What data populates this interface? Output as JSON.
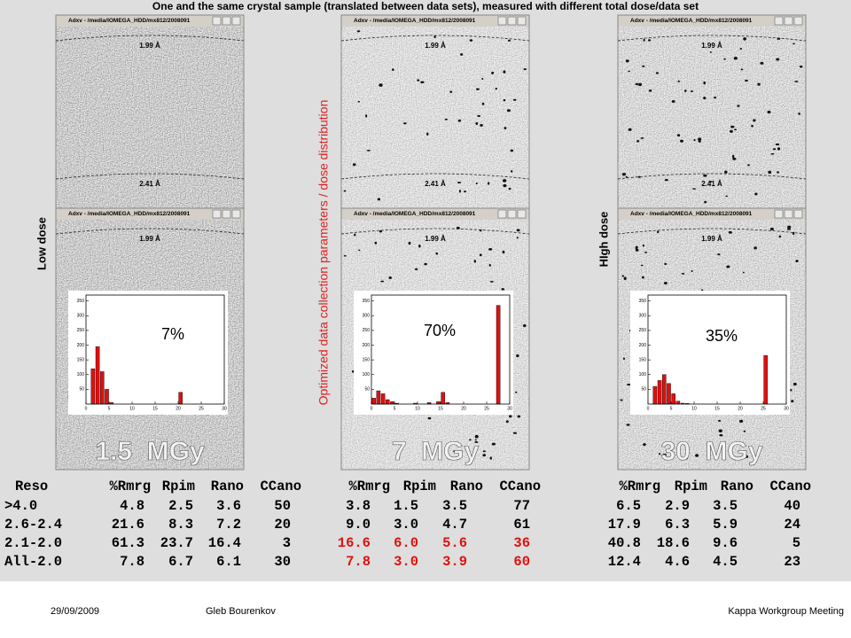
{
  "title": "One and the same crystal sample (translated between data sets), measured with different total dose/data set",
  "side_labels": {
    "low": "Low dose",
    "middle": "Optimized data collection parameters / dose distribution",
    "high": "HIgh dose"
  },
  "panels": [
    {
      "window_title": "Adxv - /media/IOMEGA_HDD/mx812/2008091",
      "top_labels": [
        "1.99 Å",
        "2.41 Å"
      ],
      "bottom_labels": [
        "1.99 Å"
      ],
      "dose": "1.5  MGy",
      "histogram": {
        "type": "histogram",
        "label": "7%",
        "bins": [
          0,
          1,
          2,
          3,
          4,
          5,
          6,
          7,
          8,
          9,
          10,
          11,
          12,
          13,
          14,
          15,
          16,
          17,
          18,
          19,
          20,
          21,
          22,
          23,
          24,
          25,
          26,
          27,
          28,
          29,
          30
        ],
        "counts": [
          0,
          120,
          195,
          110,
          50,
          5,
          0,
          0,
          0,
          0,
          0,
          0,
          0,
          0,
          0,
          0,
          0,
          0,
          0,
          0,
          40,
          0,
          0,
          0,
          0,
          0,
          0,
          0,
          0,
          0
        ],
        "xlim": [
          0,
          30
        ],
        "xticks": [
          0,
          5,
          10,
          15,
          20,
          25,
          30
        ],
        "ylim": [
          0,
          370
        ],
        "yticks": [
          50,
          100,
          150,
          200,
          250,
          300,
          350
        ]
      }
    },
    {
      "window_title": "Adxv - /media/IOMEGA_HDD/mx812/2008091",
      "top_labels": [
        "1.99 Å",
        "2.41 Å"
      ],
      "bottom_labels": [
        "1.99 Å"
      ],
      "dose": "7  MGy",
      "histogram": {
        "type": "histogram",
        "label": "70%",
        "bins": [
          0,
          1,
          2,
          3,
          4,
          5,
          6,
          7,
          8,
          9,
          10,
          11,
          12,
          13,
          14,
          15,
          16,
          17,
          18,
          19,
          20,
          21,
          22,
          23,
          24,
          25,
          26,
          27,
          28,
          29,
          30
        ],
        "counts": [
          20,
          45,
          35,
          15,
          8,
          3,
          0,
          0,
          0,
          3,
          0,
          0,
          5,
          0,
          8,
          40,
          5,
          0,
          0,
          0,
          0,
          0,
          0,
          0,
          0,
          0,
          0,
          335,
          0,
          0
        ],
        "xlim": [
          0,
          30
        ],
        "xticks": [
          0,
          5,
          10,
          15,
          20,
          25,
          30
        ],
        "ylim": [
          0,
          370
        ],
        "yticks": [
          50,
          100,
          150,
          200,
          250,
          300,
          350
        ]
      }
    },
    {
      "window_title": "Adxv - /media/IOMEGA_HDD/mx812/2008091",
      "top_labels": [
        "1.99 Å",
        "2.41 Å"
      ],
      "bottom_labels": [
        "1.99 Å"
      ],
      "dose": "30  MGy",
      "histogram": {
        "type": "histogram",
        "label": "35%",
        "bins": [
          0,
          1,
          2,
          3,
          4,
          5,
          6,
          7,
          8,
          9,
          10,
          11,
          12,
          13,
          14,
          15,
          16,
          17,
          18,
          19,
          20,
          21,
          22,
          23,
          24,
          25,
          26,
          27,
          28,
          29,
          30
        ],
        "counts": [
          0,
          60,
          80,
          100,
          70,
          35,
          10,
          3,
          2,
          0,
          0,
          0,
          0,
          0,
          0,
          0,
          0,
          0,
          0,
          0,
          0,
          0,
          0,
          0,
          0,
          165,
          0,
          0,
          0,
          0
        ],
        "xlim": [
          0,
          30
        ],
        "xticks": [
          0,
          5,
          10,
          15,
          20,
          25,
          30
        ],
        "ylim": [
          0,
          370
        ],
        "yticks": [
          50,
          100,
          150,
          200,
          250,
          300,
          350
        ]
      }
    }
  ],
  "table": {
    "header": [
      "Reso",
      "%Rmrg",
      "Rpim",
      "Rano",
      "CCano",
      "%Rmrg",
      "Rpim",
      "Rano",
      "CCano",
      "%Rmrg",
      "Rpim",
      "Rano",
      "CCano"
    ],
    "rows": [
      [
        ">4.0",
        "4.8",
        "2.5",
        "3.6",
        "50",
        "3.8",
        "1.5",
        "3.5",
        "77",
        "6.5",
        "2.9",
        "3.5",
        "40"
      ],
      [
        "2.6-2.4",
        "21.6",
        "8.3",
        "7.2",
        "20",
        "9.0",
        "3.0",
        "4.7",
        "61",
        "17.9",
        "6.3",
        "5.9",
        "24"
      ],
      [
        "2.1-2.0",
        "61.3",
        "23.7",
        "16.4",
        "3",
        "16.6",
        "6.0",
        "5.6",
        "36",
        "40.8",
        "18.6",
        "9.6",
        "5"
      ],
      [
        "All-2.0",
        "7.8",
        "6.7",
        "6.1",
        "30",
        "7.8",
        "3.0",
        "3.9",
        "60",
        "12.4",
        "4.6",
        "4.5",
        "23"
      ]
    ]
  },
  "footer": {
    "date": "29/09/2009",
    "author": "Gleb Bourenkov",
    "event": "Kappa Workgroup Meeting"
  }
}
